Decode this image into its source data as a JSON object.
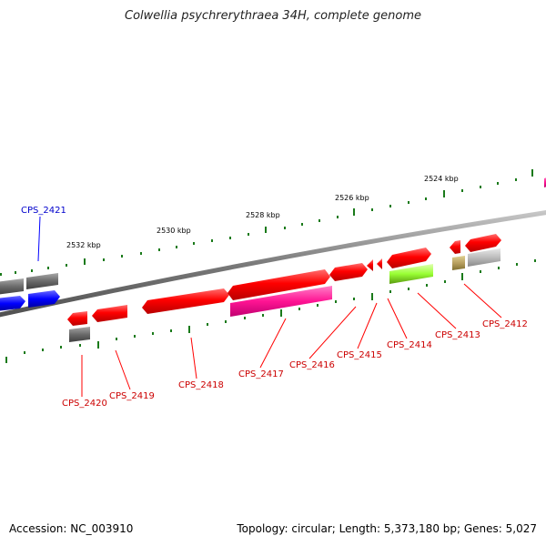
{
  "header": {
    "title": "Colwellia psychrerythraea 34H, complete genome"
  },
  "footer": {
    "accession": "Accession: NC_003910",
    "topology": "Topology: circular; Length: 5,373,180 bp; Genes: 5,027"
  },
  "scale": {
    "labels": [
      "2532 kbp",
      "2530 kbp",
      "2528 kbp",
      "2526 kbp",
      "2524 kbp"
    ]
  },
  "genes": [
    {
      "label": "CPS_2412",
      "color": "#ff0000"
    },
    {
      "label": "CPS_2413",
      "color": "#ff0000"
    },
    {
      "label": "CPS_2414",
      "color": "#ff0000"
    },
    {
      "label": "CPS_2415",
      "color": "#ff0000"
    },
    {
      "label": "CPS_2416",
      "color": "#ff0000"
    },
    {
      "label": "CPS_2417",
      "color": "#ff0000"
    },
    {
      "label": "CPS_2418",
      "color": "#ff0000"
    },
    {
      "label": "CPS_2419",
      "color": "#ff0000"
    },
    {
      "label": "CPS_2420",
      "color": "#ff0000"
    },
    {
      "label": "CPS_2421",
      "color": "#0000ff"
    }
  ],
  "colors": {
    "backbone": "#808080",
    "tick": "#1a7a1a",
    "forward_gene": "#ff0000",
    "reverse_feature": "#ff1493",
    "gray_feature": "#707070",
    "blue_gene": "#0000ff",
    "green_feature": "#99ff33",
    "tan_feature": "#b8a060"
  }
}
